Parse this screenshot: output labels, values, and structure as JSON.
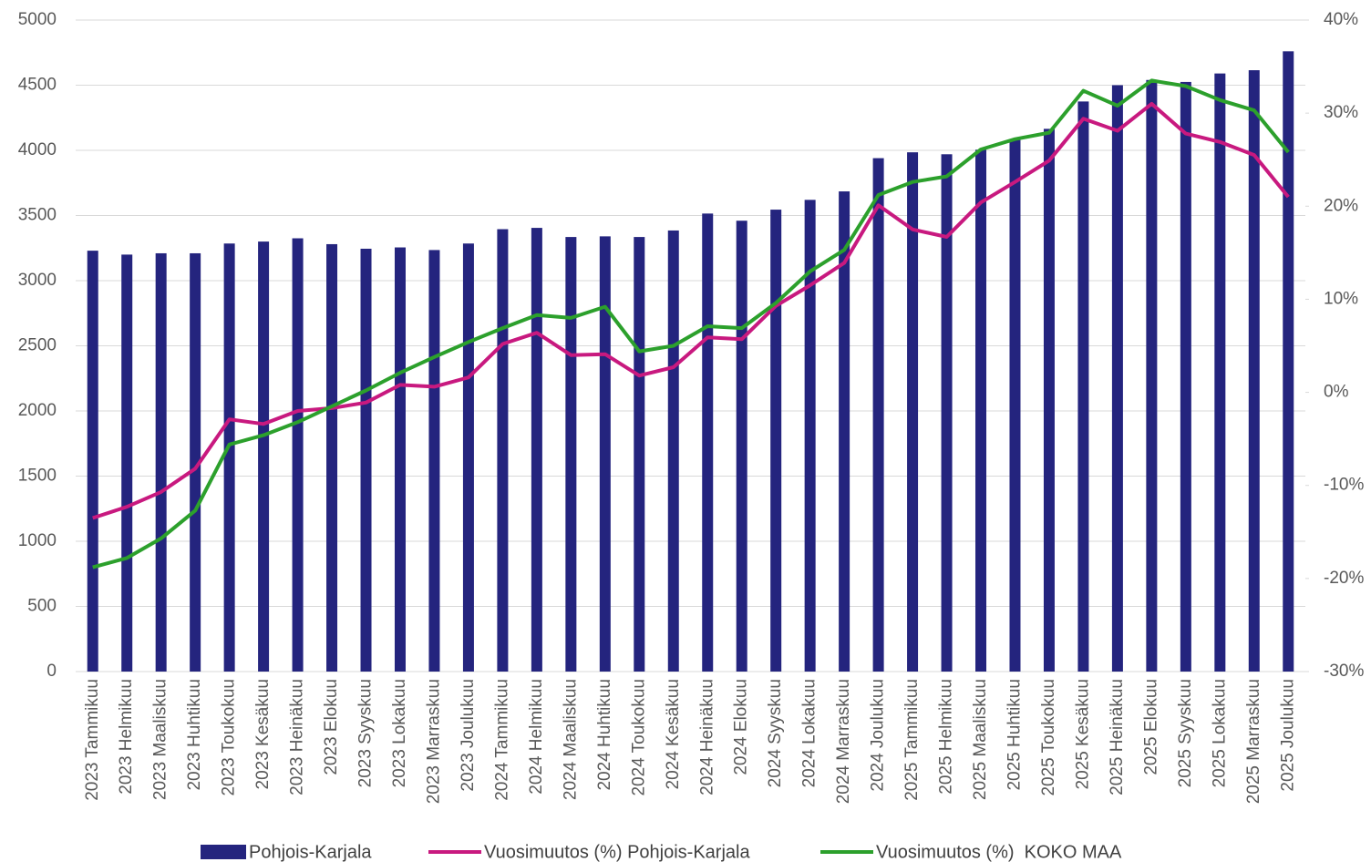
{
  "chart_data": {
    "type": "bar",
    "categories": [
      "2023 Tammikuu",
      "2023 Helmikuu",
      "2023 Maaliskuu",
      "2023 Huhtikuu",
      "2023 Toukokuu",
      "2023 Kesäkuu",
      "2023 Heinäkuu",
      "2023 Elokuu",
      "2023 Syyskuu",
      "2023 Lokakuu",
      "2023 Marraskuu",
      "2023 Joulukuu",
      "2024 Tammikuu",
      "2024 Helmikuu",
      "2024 Maaliskuu",
      "2024 Huhtikuu",
      "2024 Toukokuu",
      "2024 Kesäkuu",
      "2024 Heinäkuu",
      "2024 Elokuu",
      "2024 Syyskuu",
      "2024 Lokakuu",
      "2024 Marraskuu",
      "2024 Joulukuu",
      "2025 Tammikuu",
      "2025 Helmikuu",
      "2025 Maaliskuu",
      "2025 Huhtikuu",
      "2025 Toukokuu",
      "2025 Kesäkuu",
      "2025 Heinäkuu",
      "2025 Elokuu",
      "2025 Syyskuu",
      "2025 Lokakuu",
      "2025 Marraskuu",
      "2025 Joulukuu"
    ],
    "series": [
      {
        "name": "Pohjois-Karjala",
        "type": "bar",
        "color": "#24247e",
        "values": [
          3230,
          3200,
          3210,
          3210,
          3285,
          3300,
          3325,
          3280,
          3245,
          3255,
          3235,
          3285,
          3395,
          3405,
          3335,
          3340,
          3335,
          3385,
          3515,
          3460,
          3545,
          3620,
          3685,
          3940,
          3985,
          3970,
          4005,
          4080,
          4165,
          4375,
          4500,
          4540,
          4525,
          4590,
          4615,
          4760
        ]
      },
      {
        "name": "Vuosimuutos (%) Pohjois-Karjala",
        "type": "line",
        "axis": "y2",
        "color": "#c8197f",
        "values": [
          -13.5,
          -12.3,
          -10.7,
          -8.2,
          -2.9,
          -3.4,
          -2.0,
          -1.7,
          -1.1,
          0.8,
          0.6,
          1.6,
          5.2,
          6.4,
          4.0,
          4.1,
          1.8,
          2.7,
          5.9,
          5.7,
          9.3,
          11.5,
          13.9,
          20.1,
          17.5,
          16.7,
          20.4,
          22.6,
          24.9,
          29.4,
          28.1,
          31.0,
          27.8,
          26.9,
          25.5,
          21.0
        ]
      },
      {
        "name": "Vuosimuutos (%)  KOKO MAA",
        "type": "line",
        "axis": "y2",
        "color": "#2ca02c",
        "values": [
          -18.8,
          -17.8,
          -15.7,
          -12.7,
          -5.6,
          -4.6,
          -3.2,
          -1.5,
          0.2,
          2.1,
          3.8,
          5.4,
          6.9,
          8.3,
          8.0,
          9.2,
          4.4,
          5.0,
          7.1,
          6.9,
          9.6,
          13.0,
          15.3,
          21.2,
          22.6,
          23.2,
          26.1,
          27.2,
          27.9,
          32.4,
          30.8,
          33.5,
          32.9,
          31.4,
          30.3,
          25.8
        ]
      }
    ],
    "ylim": [
      0,
      5000
    ],
    "yticks": [
      0,
      500,
      1000,
      1500,
      2000,
      2500,
      3000,
      3500,
      4000,
      4500,
      5000
    ],
    "y2lim": [
      -30,
      40
    ],
    "y2ticks": [
      {
        "value": -30,
        "label": "-30%"
      },
      {
        "value": -20,
        "label": "-20%"
      },
      {
        "value": -10,
        "label": "-10%"
      },
      {
        "value": 0,
        "label": "0%"
      },
      {
        "value": 10,
        "label": "10%"
      },
      {
        "value": 20,
        "label": "20%"
      },
      {
        "value": 30,
        "label": "30%"
      },
      {
        "value": 40,
        "label": "40%"
      }
    ],
    "grid": true,
    "legend": "bottom"
  }
}
